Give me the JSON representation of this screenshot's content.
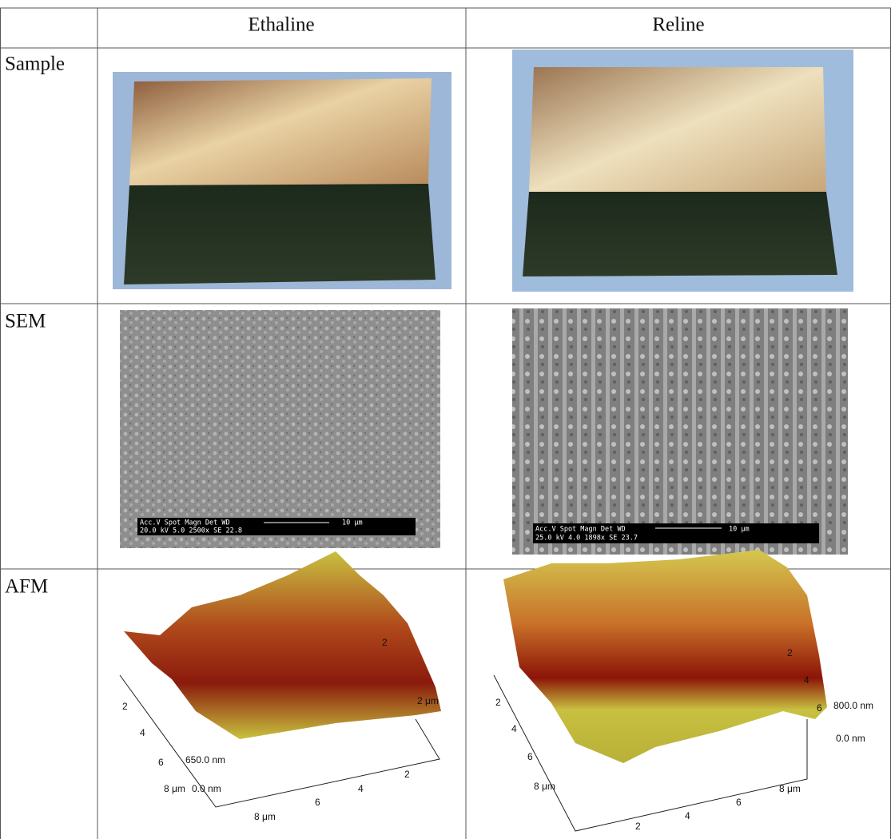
{
  "table": {
    "columns": [
      "Ethaline",
      "Reline"
    ],
    "rows": [
      "Sample",
      "SEM",
      "AFM"
    ]
  },
  "sem": [
    {
      "line1": "Acc.V  Spot Magn    Det  WD",
      "line2": "20.0 kV 5.0  2500x   SE   22.8",
      "scale": "10 μm"
    },
    {
      "line1": "Acc.V  Spot Magn    Det  WD",
      "line2": "25.0 kV 4.0  1898x   SE   23.7",
      "scale": "10 μm"
    }
  ],
  "afm": [
    {
      "labels": [
        "2",
        "4",
        "6",
        "8 μm",
        "650.0 nm",
        "0.0 nm",
        "8 μm",
        "6",
        "4",
        "2",
        "2",
        "2 μm"
      ]
    },
    {
      "labels": [
        "2",
        "4",
        "6",
        "8 μm",
        "2",
        "4",
        "6",
        "800.0 nm",
        "0.0 nm",
        "2",
        "4",
        "6",
        "8 μm"
      ]
    }
  ]
}
